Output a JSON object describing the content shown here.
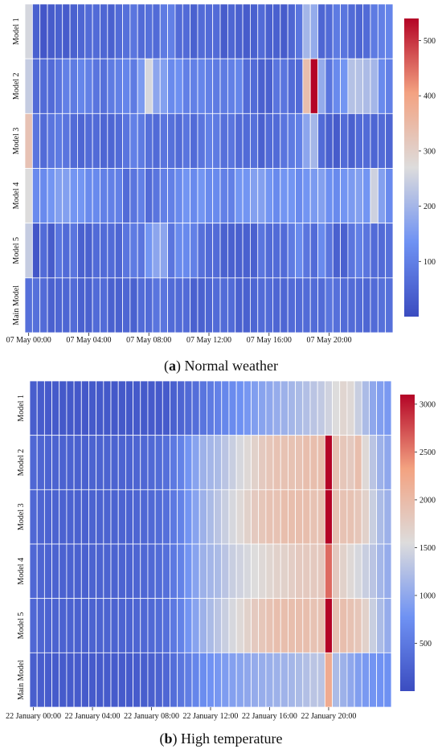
{
  "figure": {
    "captions": [
      {
        "letter": "a",
        "text": "Normal weather"
      },
      {
        "letter": "b",
        "text": "High temperature"
      }
    ]
  },
  "chart_data": [
    {
      "type": "heatmap",
      "title": "",
      "rows": [
        "Model 1",
        "Model 2",
        "Model 3",
        "Model 4",
        "Model 5",
        "Main Model"
      ],
      "x_tick_labels": [
        "07 May 00:00",
        "07 May 04:00",
        "07 May 08:00",
        "07 May 12:00",
        "07 May 16:00",
        "07 May 20:00"
      ],
      "n_columns": 49,
      "colorbar": {
        "min": 0,
        "max": 540,
        "ticks": [
          100,
          200,
          300,
          400,
          500
        ],
        "colormap": "coolwarm"
      },
      "values": [
        [
          260,
          40,
          20,
          30,
          40,
          30,
          40,
          50,
          60,
          60,
          50,
          40,
          60,
          70,
          80,
          60,
          70,
          60,
          90,
          100,
          60,
          60,
          40,
          60,
          60,
          60,
          30,
          50,
          40,
          30,
          40,
          60,
          40,
          40,
          30,
          50,
          80,
          200,
          180,
          50,
          60,
          90,
          80,
          60,
          50,
          60,
          90,
          100,
          110
        ],
        [
          240,
          60,
          60,
          60,
          80,
          100,
          90,
          110,
          100,
          80,
          70,
          90,
          100,
          110,
          90,
          150,
          260,
          170,
          160,
          120,
          130,
          100,
          100,
          110,
          100,
          90,
          90,
          100,
          110,
          60,
          60,
          40,
          40,
          80,
          80,
          60,
          60,
          340,
          540,
          180,
          80,
          120,
          140,
          220,
          220,
          210,
          200,
          120,
          100
        ],
        [
          330,
          80,
          60,
          80,
          90,
          80,
          60,
          50,
          60,
          60,
          50,
          50,
          60,
          80,
          100,
          90,
          70,
          60,
          80,
          70,
          60,
          80,
          60,
          80,
          100,
          90,
          70,
          80,
          60,
          60,
          70,
          40,
          60,
          60,
          80,
          90,
          100,
          170,
          200,
          60,
          40,
          30,
          60,
          40,
          60,
          60,
          50,
          60,
          50
        ],
        [
          270,
          120,
          120,
          140,
          160,
          160,
          140,
          140,
          120,
          120,
          100,
          100,
          100,
          60,
          80,
          100,
          60,
          80,
          100,
          100,
          120,
          140,
          120,
          140,
          120,
          120,
          100,
          100,
          140,
          140,
          160,
          160,
          140,
          120,
          140,
          140,
          120,
          140,
          150,
          160,
          130,
          120,
          140,
          150,
          160,
          140,
          250,
          160,
          120
        ],
        [
          240,
          20,
          60,
          30,
          80,
          60,
          80,
          40,
          40,
          60,
          60,
          60,
          50,
          80,
          90,
          80,
          140,
          170,
          170,
          80,
          120,
          120,
          100,
          70,
          60,
          60,
          40,
          40,
          40,
          40,
          40,
          80,
          60,
          60,
          60,
          90,
          120,
          80,
          60,
          120,
          80,
          40,
          40,
          80,
          100,
          80,
          60,
          60,
          70
        ],
        [
          70,
          70,
          60,
          40,
          50,
          50,
          60,
          40,
          40,
          60,
          60,
          40,
          40,
          50,
          40,
          60,
          60,
          80,
          80,
          60,
          60,
          60,
          40,
          40,
          50,
          60,
          60,
          60,
          40,
          40,
          50,
          60,
          60,
          50,
          50,
          60,
          60,
          60,
          60,
          60,
          80,
          70,
          60,
          60,
          60,
          50,
          60,
          70,
          70
        ]
      ]
    },
    {
      "type": "heatmap",
      "title": "",
      "rows": [
        "Model 1",
        "Model 2",
        "Model 3",
        "Model 4",
        "Model 5",
        "Main Model"
      ],
      "x_tick_labels": [
        "22 January 00:00",
        "22 January 04:00",
        "22 January 08:00",
        "22 January 12:00",
        "22 January 16:00",
        "22 January 20:00"
      ],
      "n_columns": 49,
      "colorbar": {
        "min": 0,
        "max": 3100,
        "ticks": [
          500,
          1000,
          1500,
          2000,
          2500,
          3000
        ],
        "colormap": "coolwarm"
      },
      "values": [
        [
          200,
          180,
          160,
          150,
          140,
          140,
          130,
          130,
          150,
          150,
          140,
          140,
          140,
          140,
          150,
          150,
          160,
          160,
          170,
          230,
          280,
          330,
          380,
          450,
          520,
          590,
          650,
          700,
          760,
          830,
          900,
          950,
          1000,
          1050,
          1100,
          1150,
          1200,
          1250,
          1300,
          1350,
          1450,
          1550,
          1650,
          1600,
          1400,
          1200,
          1000,
          900,
          850
        ],
        [
          300,
          280,
          260,
          250,
          240,
          240,
          230,
          230,
          250,
          250,
          250,
          250,
          260,
          260,
          280,
          300,
          320,
          350,
          400,
          500,
          600,
          800,
          950,
          1100,
          1150,
          1200,
          1300,
          1400,
          1500,
          1600,
          1700,
          1800,
          1850,
          1900,
          1900,
          1900,
          1900,
          1950,
          1950,
          1950,
          3100,
          1900,
          1850,
          1800,
          1950,
          1600,
          1300,
          1100,
          1000
        ],
        [
          300,
          280,
          260,
          250,
          240,
          240,
          230,
          230,
          250,
          250,
          250,
          250,
          260,
          260,
          280,
          300,
          320,
          350,
          400,
          500,
          600,
          800,
          950,
          1100,
          1200,
          1300,
          1400,
          1500,
          1600,
          1700,
          1800,
          1850,
          1900,
          1900,
          1950,
          1950,
          1950,
          1950,
          1900,
          1900,
          3100,
          1900,
          1900,
          1900,
          1850,
          1700,
          1400,
          1200,
          1100
        ],
        [
          300,
          280,
          260,
          250,
          240,
          240,
          230,
          230,
          250,
          250,
          250,
          250,
          260,
          260,
          280,
          300,
          320,
          350,
          400,
          500,
          600,
          800,
          950,
          1100,
          1150,
          1200,
          1300,
          1400,
          1450,
          1500,
          1550,
          1600,
          1650,
          1700,
          1700,
          1750,
          1800,
          1800,
          1800,
          1800,
          2600,
          1800,
          1700,
          1600,
          1500,
          1400,
          1300,
          1150,
          1050
        ],
        [
          300,
          280,
          260,
          250,
          240,
          240,
          230,
          230,
          250,
          250,
          250,
          250,
          260,
          260,
          280,
          300,
          320,
          350,
          400,
          500,
          600,
          800,
          950,
          1100,
          1200,
          1300,
          1400,
          1500,
          1600,
          1700,
          1800,
          1850,
          1900,
          1950,
          1950,
          1950,
          1950,
          1950,
          1900,
          1900,
          3100,
          1900,
          1950,
          1900,
          1850,
          1700,
          1400,
          1200,
          1050
        ],
        [
          200,
          190,
          180,
          170,
          170,
          170,
          170,
          160,
          170,
          170,
          170,
          170,
          170,
          170,
          180,
          200,
          220,
          250,
          300,
          380,
          460,
          550,
          640,
          720,
          780,
          830,
          880,
          920,
          960,
          1000,
          1040,
          1060,
          1080,
          1100,
          1120,
          1150,
          1200,
          1250,
          1300,
          1300,
          2200,
          1200,
          1100,
          1000,
          900,
          850,
          800,
          780,
          760
        ]
      ]
    }
  ]
}
